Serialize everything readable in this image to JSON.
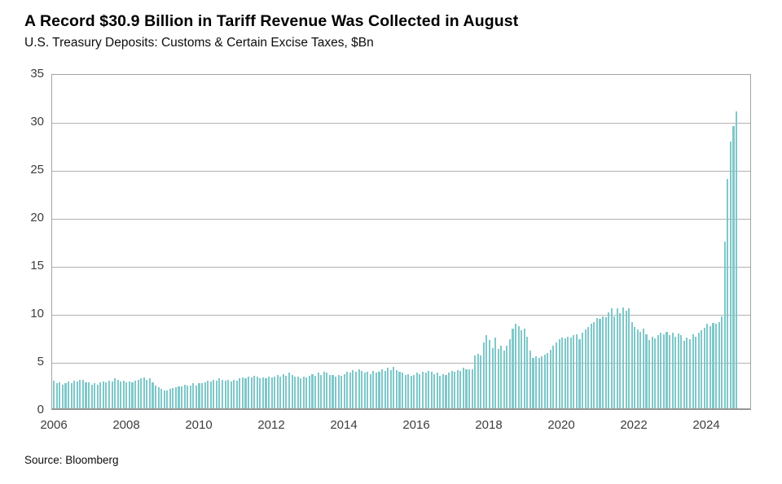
{
  "header": {
    "title": "A Record $30.9 Billion in Tariff Revenue Was Collected in August",
    "subtitle": "U.S. Treasury Deposits: Customs & Certain Excise Taxes, $Bn"
  },
  "footer": {
    "source": "Source: Bloomberg"
  },
  "chart_data": {
    "type": "bar",
    "title": "A Record $30.9 Billion in Tariff Revenue Was Collected in August",
    "subtitle": "U.S. Treasury Deposits: Customs & Certain Excise Taxes, $Bn",
    "unit": "$Bn",
    "frequency": "monthly",
    "start": "2006-01",
    "end": "2025-08",
    "ylim": [
      0,
      35
    ],
    "yticks": [
      0,
      5,
      10,
      15,
      20,
      25,
      30,
      35
    ],
    "xtick_labels": [
      "2006",
      "2008",
      "2010",
      "2012",
      "2014",
      "2016",
      "2018",
      "2020",
      "2022",
      "2024"
    ],
    "bar_color": "#7ec8ca",
    "grid": true,
    "legend": "none",
    "peak_value": 30.9,
    "values": [
      2.9,
      2.6,
      2.7,
      2.5,
      2.6,
      2.8,
      2.6,
      2.9,
      2.8,
      3.0,
      3.0,
      2.7,
      2.7,
      2.5,
      2.6,
      2.5,
      2.7,
      2.8,
      2.7,
      2.9,
      2.8,
      3.1,
      3.0,
      2.8,
      2.9,
      2.7,
      2.8,
      2.7,
      2.9,
      3.0,
      3.1,
      3.2,
      3.0,
      3.1,
      2.7,
      2.4,
      2.2,
      2.0,
      1.9,
      1.9,
      2.0,
      2.1,
      2.2,
      2.3,
      2.3,
      2.5,
      2.4,
      2.4,
      2.6,
      2.4,
      2.6,
      2.6,
      2.7,
      2.9,
      2.8,
      3.0,
      2.9,
      3.1,
      3.0,
      2.9,
      3.0,
      2.8,
      3.0,
      2.9,
      3.1,
      3.2,
      3.1,
      3.3,
      3.2,
      3.4,
      3.3,
      3.1,
      3.2,
      3.1,
      3.3,
      3.2,
      3.3,
      3.5,
      3.3,
      3.6,
      3.4,
      3.7,
      3.5,
      3.3,
      3.3,
      3.1,
      3.3,
      3.2,
      3.4,
      3.6,
      3.4,
      3.7,
      3.5,
      3.8,
      3.7,
      3.5,
      3.5,
      3.3,
      3.5,
      3.4,
      3.6,
      3.8,
      3.7,
      4.0,
      3.8,
      4.1,
      3.9,
      3.7,
      3.8,
      3.6,
      3.9,
      3.7,
      3.8,
      4.1,
      3.9,
      4.2,
      4.0,
      4.3,
      4.0,
      3.8,
      3.7,
      3.5,
      3.6,
      3.4,
      3.5,
      3.7,
      3.6,
      3.8,
      3.7,
      3.9,
      3.8,
      3.6,
      3.7,
      3.4,
      3.6,
      3.5,
      3.7,
      3.9,
      3.8,
      4.0,
      3.9,
      4.2,
      4.1,
      4.1,
      4.1,
      5.5,
      5.7,
      5.5,
      6.9,
      7.6,
      7.1,
      6.3,
      7.4,
      6.2,
      6.5,
      6.0,
      6.5,
      7.2,
      8.3,
      8.8,
      8.6,
      8.1,
      8.3,
      7.5,
      6.0,
      5.3,
      5.4,
      5.3,
      5.4,
      5.6,
      5.8,
      6.1,
      6.5,
      6.9,
      7.2,
      7.4,
      7.3,
      7.5,
      7.4,
      7.6,
      7.7,
      7.2,
      7.9,
      8.2,
      8.5,
      8.8,
      9.0,
      9.4,
      9.3,
      9.6,
      9.5,
      10.0,
      10.4,
      9.6,
      10.4,
      9.9,
      10.5,
      10.2,
      10.4,
      9.0,
      8.5,
      8.2,
      8.0,
      8.3,
      7.7,
      7.1,
      7.5,
      7.3,
      7.6,
      7.9,
      7.7,
      8.0,
      7.6,
      7.9,
      7.5,
      7.8,
      7.6,
      7.0,
      7.4,
      7.2,
      7.7,
      7.5,
      7.9,
      8.1,
      8.4,
      8.8,
      8.6,
      8.9,
      8.8,
      9.0,
      9.6,
      17.4,
      23.9,
      27.8,
      29.4,
      30.9
    ]
  }
}
